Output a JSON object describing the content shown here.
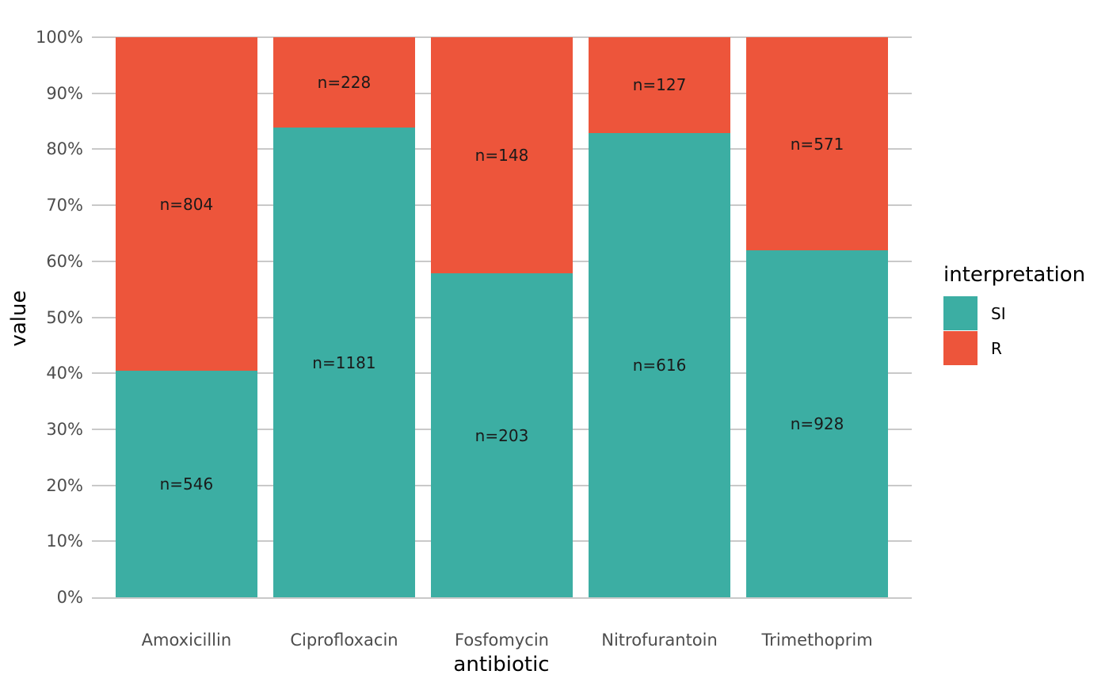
{
  "chart_data": {
    "type": "bar",
    "variant": "stacked-percent-100",
    "title": "",
    "xlabel": "antibiotic",
    "ylabel": "value",
    "categories": [
      "Amoxicillin",
      "Ciprofloxacin",
      "Fosfomycin",
      "Nitrofurantoin",
      "Trimethoprim"
    ],
    "series": [
      {
        "name": "SI",
        "color": "#3CAEA3",
        "values": [
          546,
          1181,
          203,
          616,
          928
        ],
        "labels": [
          "n=546",
          "n=1181",
          "n=203",
          "n=616",
          "n=928"
        ],
        "percent_of_total": [
          40.4,
          83.8,
          57.8,
          82.9,
          61.9
        ]
      },
      {
        "name": "R",
        "color": "#ED553B",
        "values": [
          804,
          228,
          148,
          127,
          571
        ],
        "labels": [
          "n=804",
          "n=228",
          "n=148",
          "n=127",
          "n=571"
        ],
        "percent_of_total": [
          59.6,
          16.2,
          42.2,
          17.1,
          38.1
        ]
      }
    ],
    "stack_order_bottom_to_top": [
      "SI",
      "R"
    ],
    "y_ticks": [
      "0%",
      "10%",
      "20%",
      "30%",
      "40%",
      "50%",
      "60%",
      "70%",
      "80%",
      "90%",
      "100%"
    ],
    "ylim": [
      0,
      100
    ],
    "grid": "horizontal-major-only",
    "legend": {
      "title": "interpretation",
      "position": "right",
      "entries": [
        "SI",
        "R"
      ]
    }
  },
  "colors": {
    "si": "#3CAEA3",
    "r": "#ED553B",
    "gridline": "#C9C9C9",
    "tick_label": "#4D4D4D",
    "axis_title": "#000000",
    "bar_label": "#1A1A1A",
    "background": "#FFFFFF"
  }
}
